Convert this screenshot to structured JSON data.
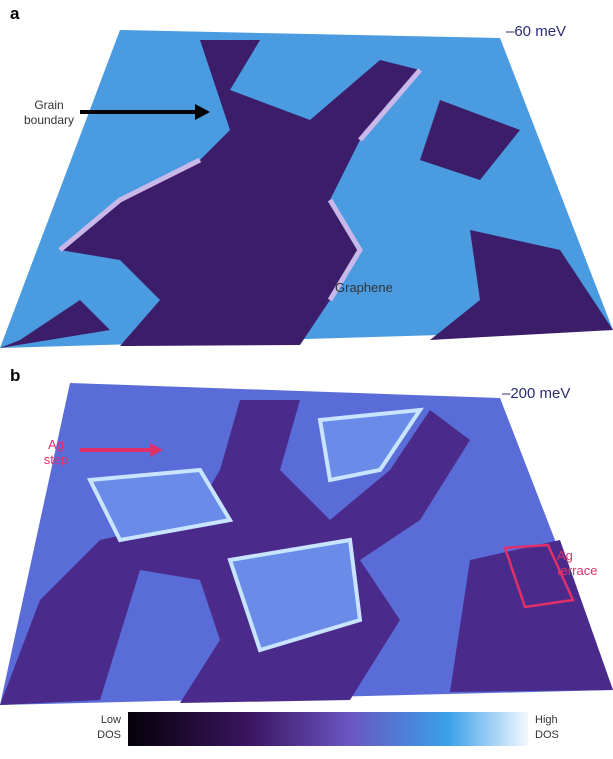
{
  "panels": [
    {
      "label": "a",
      "energy": "–60 meV",
      "annotations": [
        "Grain boundary",
        "Graphene"
      ]
    },
    {
      "label": "b",
      "energy": "–200 meV",
      "annotations": [
        "Ag step",
        "Ag terrace"
      ]
    }
  ],
  "colorbar": {
    "low": "Low DOS",
    "high": "High DOS"
  }
}
